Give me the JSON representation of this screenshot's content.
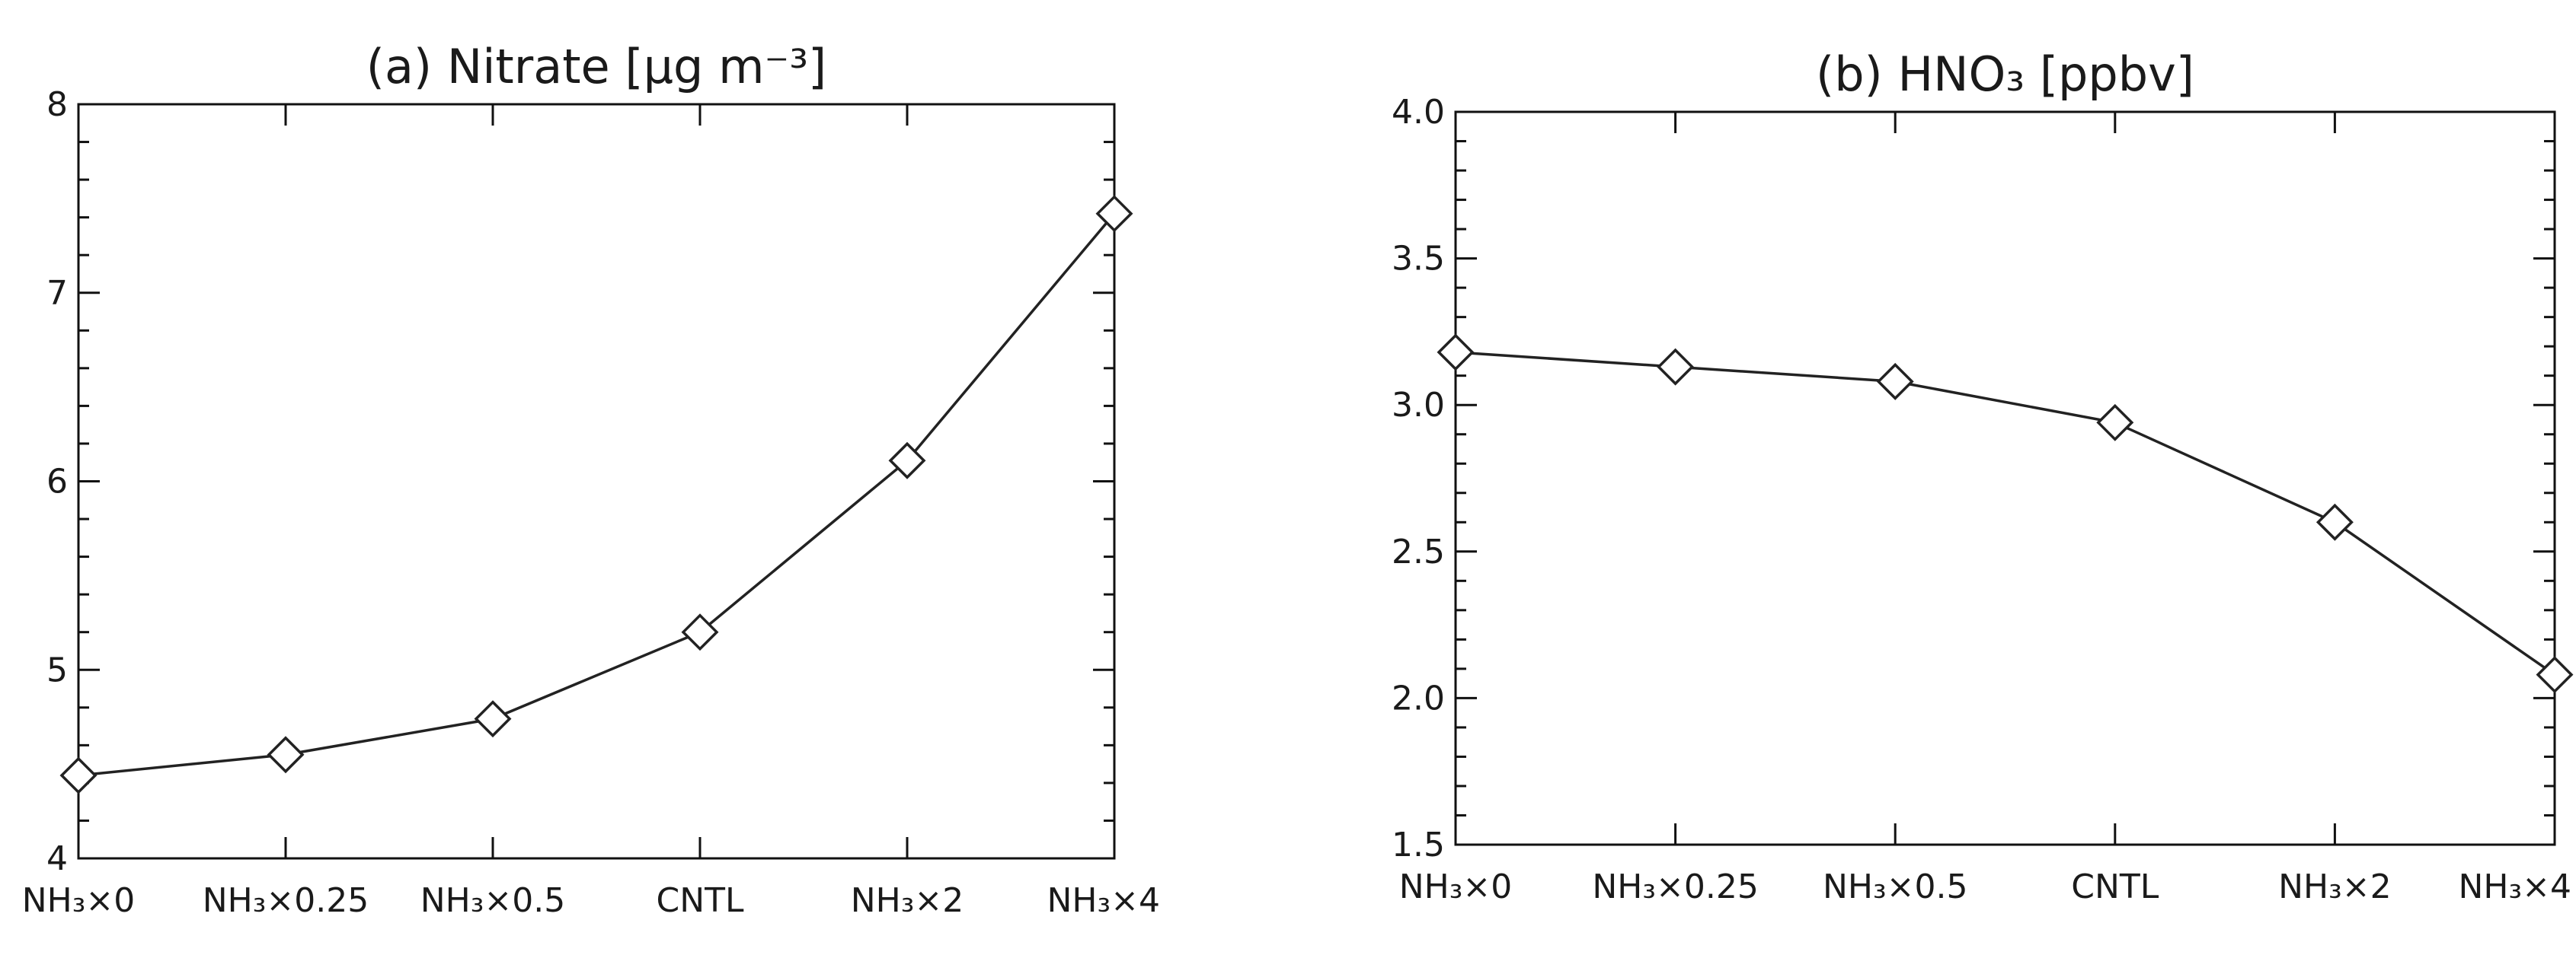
{
  "chart_data": [
    {
      "type": "line",
      "title": "(a) Nitrate [μg m⁻³]",
      "categories": [
        "NH₃×0",
        "NH₃×0.25",
        "NH₃×0.5",
        "CNTL",
        "NH₃×2",
        "NH₃×4"
      ],
      "values": [
        4.44,
        4.55,
        4.74,
        5.2,
        6.11,
        7.42
      ],
      "ylim": [
        4,
        8
      ],
      "yticks": [
        "4",
        "5",
        "6",
        "7",
        "8"
      ],
      "marker": "diamond",
      "grid": false
    },
    {
      "type": "line",
      "title": "(b) HNO₃ [ppbv]",
      "categories": [
        "NH₃×0",
        "NH₃×0.25",
        "NH₃×0.5",
        "CNTL",
        "NH₃×2",
        "NH₃×4"
      ],
      "values": [
        3.18,
        3.13,
        3.08,
        2.94,
        2.6,
        2.08
      ],
      "ylim": [
        1.5,
        4.0
      ],
      "yticks": [
        "1.5",
        "2.0",
        "2.5",
        "3.0",
        "3.5",
        "4.0"
      ],
      "marker": "diamond",
      "grid": false
    }
  ]
}
